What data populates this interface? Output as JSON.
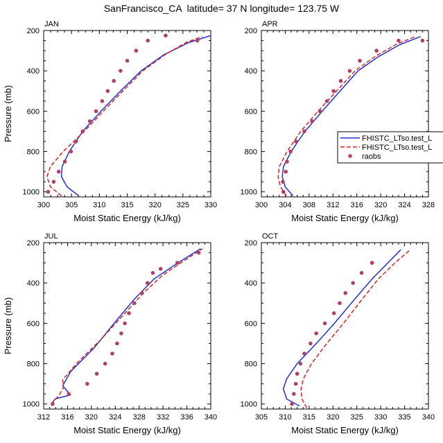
{
  "title": "SanFrancisco_CA  latitude= 37 N longitude= 123.75 W",
  "legend": {
    "entries": [
      {
        "label": "FHISTC_LTso.test_L",
        "color": "#1f2fd8",
        "style": "solid"
      },
      {
        "label": "FHISTC_LTso.test_L",
        "color": "#e0201a",
        "style": "dashed"
      },
      {
        "label": "raobs",
        "color": "#b0406a",
        "style": "dot"
      }
    ]
  },
  "chart_data": [
    {
      "type": "line",
      "name": "JAN",
      "panel_label": "JAN",
      "xlabel": "Moist Static Energy (kJ/kg)",
      "ylabel": "Pressure (mb)",
      "xlim": [
        300,
        330
      ],
      "ylim": [
        1025,
        200
      ],
      "y_inverted": true,
      "xticks": [
        300,
        305,
        310,
        315,
        320,
        325,
        330
      ],
      "yticks": [
        200,
        400,
        600,
        800,
        1000
      ],
      "series": [
        {
          "name": "FHISTC_LTso.test_L (solid)",
          "color": "#1f2fd8",
          "dash": false,
          "x": [
            306.3,
            304.2,
            303.2,
            303.3,
            304.6,
            307.0,
            310.3,
            313.8,
            317.5,
            321.6,
            326.0,
            330.0
          ],
          "y": [
            1020,
            975,
            925,
            875,
            800,
            700,
            600,
            500,
            400,
            320,
            260,
            225
          ]
        },
        {
          "name": "FHISTC_LTso.test_L (dashed)",
          "color": "#e0201a",
          "dash": true,
          "x": [
            303.2,
            301.2,
            300.6,
            301.2,
            303.5,
            307.3,
            310.7,
            314.2,
            317.8,
            321.8,
            325.5,
            328.5
          ],
          "y": [
            1020,
            975,
            925,
            875,
            800,
            700,
            600,
            500,
            400,
            320,
            260,
            230
          ]
        }
      ],
      "points": {
        "name": "raobs",
        "color": "#b0406a",
        "x": [
          300.8,
          301.8,
          302.7,
          303.8,
          304.9,
          305.8,
          307.0,
          308.3,
          309.4,
          310.5,
          311.5,
          312.6,
          313.8,
          315.0,
          316.6,
          318.7,
          321.9,
          327.6
        ],
        "y": [
          1000,
          950,
          900,
          850,
          800,
          750,
          700,
          650,
          600,
          550,
          500,
          450,
          400,
          350,
          300,
          250,
          225,
          250
        ]
      }
    },
    {
      "type": "line",
      "name": "APR",
      "panel_label": "APR",
      "xlabel": "Moist Static Energy (kJ/kg)",
      "ylabel": "",
      "xlim": [
        300,
        328
      ],
      "ylim": [
        1025,
        200
      ],
      "y_inverted": true,
      "xticks": [
        300,
        304,
        308,
        312,
        316,
        320,
        324,
        328
      ],
      "yticks": [
        200,
        400,
        600,
        800,
        1000
      ],
      "series": [
        {
          "name": "FHISTC_LTso.test_L (solid)",
          "color": "#1f2fd8",
          "dash": false,
          "x": [
            305.3,
            304.0,
            303.5,
            303.7,
            305.0,
            307.3,
            310.2,
            313.2,
            316.2,
            319.6,
            323.2,
            326.7
          ],
          "y": [
            1020,
            975,
            925,
            875,
            800,
            700,
            600,
            500,
            400,
            330,
            270,
            230
          ]
        },
        {
          "name": "FHISTC_LTso.test_L (dashed)",
          "color": "#e0201a",
          "dash": true,
          "x": [
            304.2,
            303.2,
            302.8,
            303.0,
            304.3,
            306.6,
            309.5,
            312.6,
            315.7,
            319.0,
            322.5,
            325.8
          ],
          "y": [
            1020,
            975,
            925,
            875,
            800,
            700,
            600,
            500,
            400,
            330,
            270,
            230
          ]
        }
      ],
      "points": {
        "name": "raobs",
        "color": "#b0406a",
        "x": [
          303.7,
          303.6,
          304.1,
          304.3,
          304.9,
          305.8,
          307.2,
          308.5,
          309.8,
          311.0,
          312.1,
          313.3,
          314.8,
          316.5,
          319.3,
          323.0,
          327.0
        ],
        "y": [
          1000,
          950,
          900,
          850,
          800,
          750,
          700,
          650,
          600,
          550,
          500,
          450,
          400,
          350,
          300,
          250,
          250
        ]
      }
    },
    {
      "type": "line",
      "name": "JUL",
      "panel_label": "JUL",
      "xlabel": "Moist Static Energy (kJ/kg)",
      "ylabel": "Pressure (mb)",
      "xlim": [
        312,
        340
      ],
      "ylim": [
        1025,
        200
      ],
      "y_inverted": true,
      "xticks": [
        312,
        316,
        320,
        324,
        328,
        332,
        336,
        340
      ],
      "yticks": [
        200,
        400,
        600,
        800,
        1000
      ],
      "series": [
        {
          "name": "FHISTC_LTso.test_L (solid)",
          "color": "#1f2fd8",
          "dash": false,
          "x": [
            313.4,
            313.9,
            316.5,
            315.2,
            316.5,
            320.5,
            323.8,
            327.2,
            330.5,
            334.5,
            338.3
          ],
          "y": [
            1000,
            975,
            955,
            910,
            840,
            720,
            600,
            480,
            380,
            300,
            230
          ]
        },
        {
          "name": "FHISTC_LTso.test_L (dashed)",
          "color": "#e0201a",
          "dash": true,
          "x": [
            313.2,
            314.5,
            315.3,
            315.2,
            317.5,
            321.6,
            325.3,
            328.7,
            332.0,
            335.5,
            338.6
          ],
          "y": [
            1000,
            960,
            920,
            880,
            800,
            680,
            560,
            450,
            360,
            290,
            230
          ]
        }
      ],
      "points": {
        "name": "raobs",
        "color": "#b0406a",
        "x": [
          313.5,
          316.2,
          319.3,
          320.9,
          322.3,
          323.5,
          324.3,
          325.0,
          325.6,
          326.3,
          327.2,
          328.5,
          329.4,
          330.3,
          331.6,
          334.4,
          338.0
        ],
        "y": [
          1000,
          950,
          900,
          850,
          800,
          750,
          700,
          650,
          600,
          550,
          500,
          450,
          400,
          350,
          330,
          300,
          250
        ]
      }
    },
    {
      "type": "line",
      "name": "OCT",
      "panel_label": "OCT",
      "xlabel": "Moist Static Energy (kJ/kg)",
      "ylabel": "",
      "xlim": [
        305,
        340
      ],
      "ylim": [
        1025,
        200
      ],
      "y_inverted": true,
      "xticks": [
        305,
        310,
        315,
        320,
        325,
        330,
        335,
        340
      ],
      "yticks": [
        200,
        400,
        600,
        800,
        1000
      ],
      "series": [
        {
          "name": "FHISTC_LTso.test_L (solid)",
          "color": "#1f2fd8",
          "dash": false,
          "x": [
            313.0,
            310.3,
            309.6,
            310.3,
            312.5,
            316.5,
            320.3,
            324.2,
            328.2,
            331.5,
            334.2
          ],
          "y": [
            1010,
            975,
            925,
            875,
            800,
            700,
            600,
            490,
            380,
            300,
            235
          ]
        },
        {
          "name": "FHISTC_LTso.test_L (dashed)",
          "color": "#e0201a",
          "dash": true,
          "x": [
            314.5,
            313.5,
            313.3,
            313.8,
            315.5,
            318.7,
            322.2,
            325.8,
            329.5,
            333.0,
            336.2
          ],
          "y": [
            1020,
            975,
            925,
            875,
            800,
            700,
            600,
            490,
            380,
            300,
            235
          ]
        }
      ],
      "points": {
        "name": "raobs",
        "color": "#b0406a",
        "x": [
          311.4,
          311.8,
          312.2,
          312.5,
          313.2,
          314.0,
          315.3,
          316.5,
          318.3,
          320.2,
          321.4,
          322.6,
          324.2,
          326.0,
          328.2
        ],
        "y": [
          1000,
          950,
          900,
          850,
          800,
          750,
          700,
          650,
          600,
          550,
          500,
          450,
          400,
          350,
          300
        ]
      }
    }
  ]
}
